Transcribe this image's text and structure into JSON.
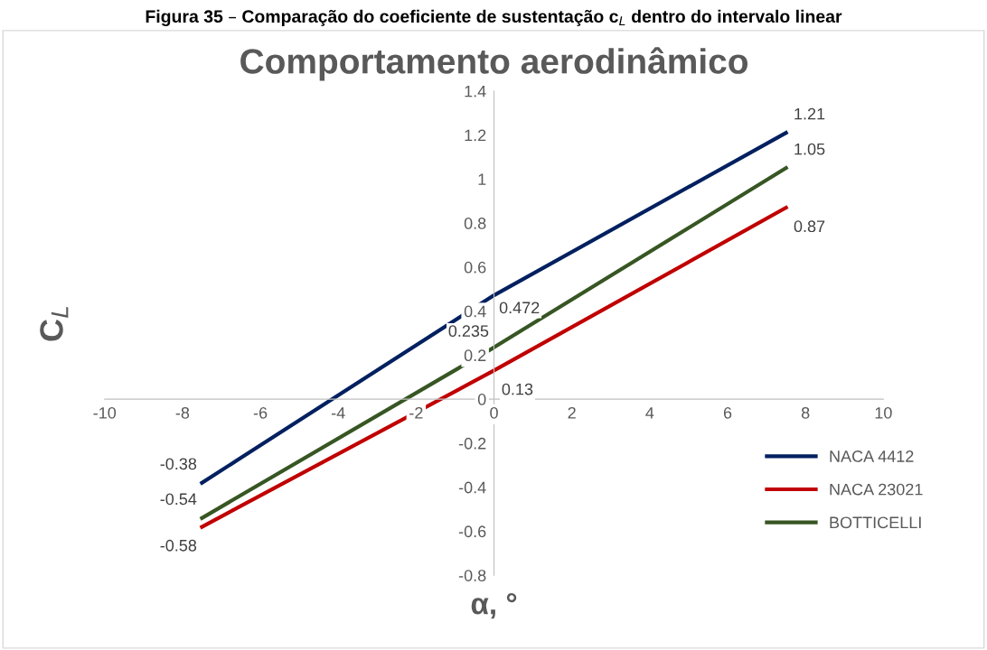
{
  "chart_data": {
    "type": "line",
    "title": "Comportamento aerodinâmico",
    "xlabel": "α, °",
    "ylabel": "C$_{L}$",
    "annotations": [
      "Figura 35 – Comparação do coeficiente de sustentação c$_{L}$ dentro do intervalo linear"
    ],
    "x": [
      -7.5,
      0,
      7.5
    ],
    "series": [
      {
        "name": "NACA 4412",
        "color": "#002060",
        "values": [
          -0.38,
          0.472,
          1.21
        ]
      },
      {
        "name": "NACA 23021",
        "color": "#c00000",
        "values": [
          -0.58,
          0.13,
          0.87
        ]
      },
      {
        "name": "BOTTICELLI",
        "color": "#375623",
        "values": [
          -0.54,
          0.235,
          1.05
        ]
      }
    ],
    "xlim": [
      -10,
      10
    ],
    "xticks": [
      -10,
      -8,
      -6,
      -4,
      -2,
      0,
      2,
      4,
      6,
      8,
      10
    ],
    "ylim": [
      -0.8,
      1.4
    ],
    "yticks": [
      -0.8,
      -0.6,
      -0.4,
      -0.2,
      0,
      0.2,
      0.4,
      0.6,
      0.8,
      1,
      1.2,
      1.4
    ],
    "data_labels": true,
    "legend": "bottom right",
    "grid": false,
    "marker": "none",
    "line_style": "solid"
  }
}
